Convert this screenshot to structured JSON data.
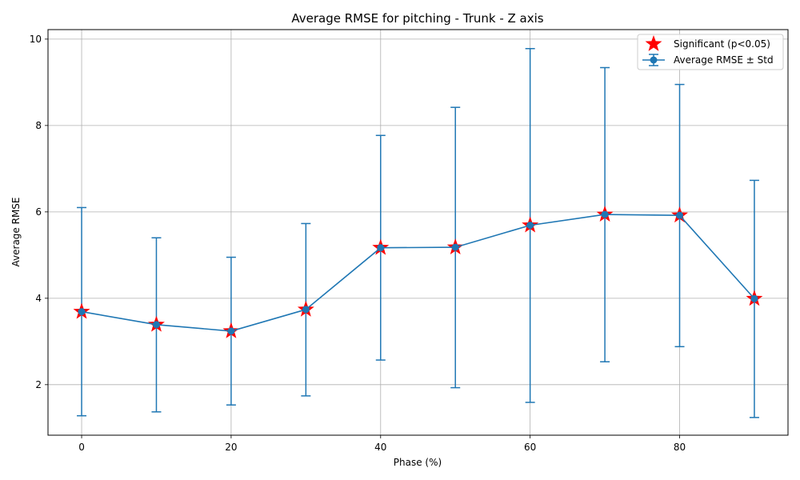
{
  "chart_data": {
    "type": "line",
    "title": "Average RMSE for pitching - Trunk - Z axis",
    "xlabel": "Phase (%)",
    "ylabel": "Average RMSE",
    "xlim": [
      -4.5,
      94.5
    ],
    "ylim": [
      0.83,
      10.22
    ],
    "xticks": [
      0,
      20,
      40,
      60,
      80
    ],
    "yticks": [
      2,
      4,
      6,
      8,
      10
    ],
    "grid": true,
    "legend_position": "top-right",
    "series": [
      {
        "name": "Average RMSE ± Std",
        "color": "#1f77b4",
        "x": [
          0,
          10,
          20,
          30,
          40,
          50,
          60,
          70,
          80,
          90
        ],
        "y": [
          3.69,
          3.39,
          3.24,
          3.74,
          5.17,
          5.18,
          5.69,
          5.94,
          5.92,
          3.99
        ],
        "err_low": [
          1.28,
          1.37,
          1.53,
          1.74,
          2.57,
          1.93,
          1.59,
          2.53,
          2.88,
          1.24
        ],
        "err_high": [
          6.1,
          5.4,
          4.95,
          5.73,
          7.77,
          8.42,
          9.78,
          9.34,
          8.95,
          6.73
        ]
      }
    ],
    "significant": {
      "name": "Significant (p<0.05)",
      "color": "#ff0000",
      "x": [
        0,
        10,
        20,
        30,
        40,
        50,
        60,
        70,
        80,
        90
      ]
    }
  }
}
